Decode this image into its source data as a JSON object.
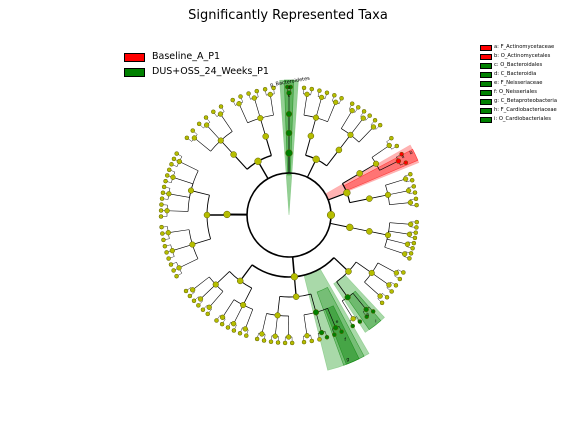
{
  "title": "Significantly Represented Taxa",
  "colors": {
    "baseline": "#ff0000",
    "dus": "#008000",
    "node": "#b5bd00",
    "node_stroke": "#5a5a00",
    "red_shade": "#ff9999",
    "green_shade": "#6fbf6f"
  },
  "legend": [
    {
      "label": "Baseline_A_P1",
      "color": "#ff0000"
    },
    {
      "label": "DUS+OSS_24_Weeks_P1",
      "color": "#008000"
    }
  ],
  "taxa_key": [
    {
      "label": "a: F_Actinomycetaceae",
      "color": "#ff0000"
    },
    {
      "label": "b: O_Actinomycetales",
      "color": "#ff0000"
    },
    {
      "label": "c: O_Bacteroidales",
      "color": "#008000"
    },
    {
      "label": "d: C_Bacteroidia",
      "color": "#008000"
    },
    {
      "label": "e: F_Neisseriaceae",
      "color": "#008000"
    },
    {
      "label": "f: O_Neisseriales",
      "color": "#008000"
    },
    {
      "label": "g: C_Betaproteobacteria",
      "color": "#008000"
    },
    {
      "label": "h: F_Cardiobacteriaceae",
      "color": "#008000"
    },
    {
      "label": "i: O_Cardiobacteriales",
      "color": "#008000"
    }
  ],
  "clade_labels": {
    "bacteroidetes": "p_Bacteroidetes",
    "a": "a",
    "b": "b",
    "c": "c",
    "d": "d",
    "e": "e",
    "f": "f",
    "g": "g",
    "h": "h",
    "i": "i"
  }
}
